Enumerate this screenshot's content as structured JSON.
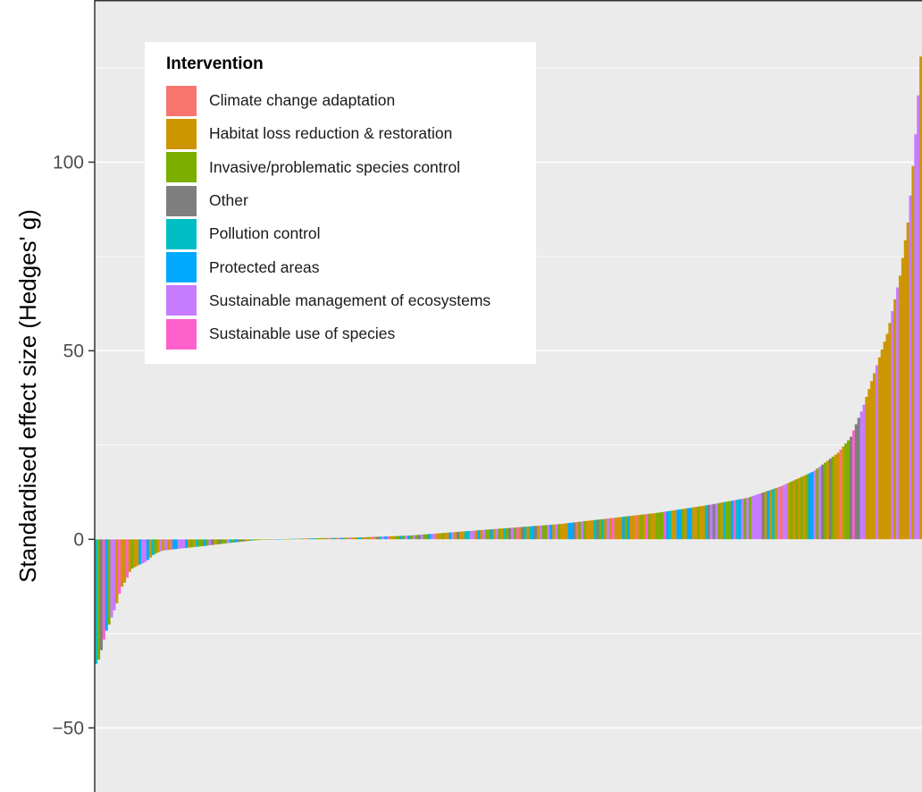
{
  "chart_data": {
    "type": "bar",
    "title": "",
    "xlabel": "",
    "ylabel": "Standardised effect size (Hedges' g)",
    "ylim": [
      -67,
      143
    ],
    "yticks": [
      100,
      50,
      0,
      -50
    ],
    "ytick_labels": [
      "100",
      "50",
      "0",
      "−50"
    ],
    "grid": true,
    "x_order": "ranked ascending by effect size",
    "legend": {
      "title": "Intervention",
      "placement": "top-left",
      "entries": [
        {
          "label": "Climate change adaptation",
          "color": "#F8766D"
        },
        {
          "label": "Habitat loss reduction & restoration",
          "color": "#CD9600"
        },
        {
          "label": "Invasive/problematic species control",
          "color": "#7CAE00"
        },
        {
          "label": "Other",
          "color": "#7F7F7F"
        },
        {
          "label": "Pollution control",
          "color": "#00BFC4"
        },
        {
          "label": "Protected areas",
          "color": "#00A9FF"
        },
        {
          "label": "Sustainable management of ecosystems",
          "color": "#C77CFF"
        },
        {
          "label": "Sustainable use of species",
          "color": "#FF61CC"
        }
      ]
    },
    "profile_points": [
      [
        0.0,
        -33
      ],
      [
        0.003,
        -32
      ],
      [
        0.008,
        -28
      ],
      [
        0.011,
        -25
      ],
      [
        0.015,
        -23
      ],
      [
        0.02,
        -20
      ],
      [
        0.025,
        -17
      ],
      [
        0.03,
        -13
      ],
      [
        0.036,
        -11
      ],
      [
        0.042,
        -8
      ],
      [
        0.05,
        -7
      ],
      [
        0.06,
        -6
      ],
      [
        0.07,
        -4
      ],
      [
        0.08,
        -3
      ],
      [
        0.1,
        -2.5
      ],
      [
        0.13,
        -1.8
      ],
      [
        0.16,
        -1
      ],
      [
        0.19,
        -0.3
      ],
      [
        0.21,
        0
      ],
      [
        0.23,
        0.1
      ],
      [
        0.27,
        0.3
      ],
      [
        0.32,
        0.5
      ],
      [
        0.38,
        1
      ],
      [
        0.44,
        2
      ],
      [
        0.5,
        3
      ],
      [
        0.56,
        4
      ],
      [
        0.62,
        5.5
      ],
      [
        0.68,
        7
      ],
      [
        0.74,
        9
      ],
      [
        0.79,
        11
      ],
      [
        0.83,
        14
      ],
      [
        0.87,
        18
      ],
      [
        0.9,
        23
      ],
      [
        0.915,
        27
      ],
      [
        0.93,
        35
      ],
      [
        0.945,
        45
      ],
      [
        0.96,
        55
      ],
      [
        0.975,
        70
      ],
      [
        0.985,
        85
      ],
      [
        0.993,
        105
      ],
      [
        1.0,
        128
      ]
    ],
    "categorical_mix_note": "Bars are colored by intervention; most bars are Habitat loss reduction & restoration, Invasive/problematic species control, Sustainable management of ecosystems and Protected areas."
  }
}
